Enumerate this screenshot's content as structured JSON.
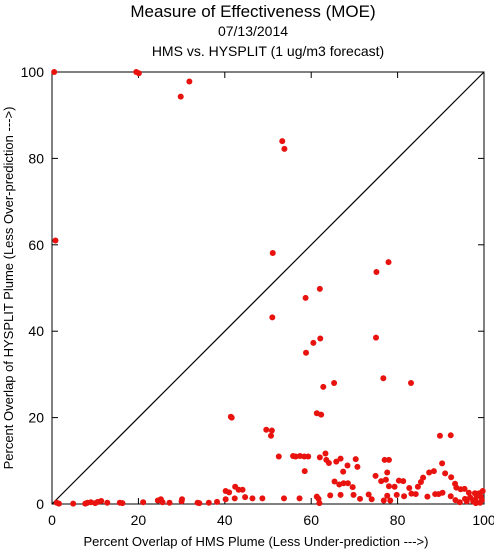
{
  "chart_data": {
    "type": "scatter",
    "title": "Measure of Effectiveness (MOE)",
    "subtitle_date": "07/13/2014",
    "subtitle_compare": "HMS vs. HYSPLIT  (1 ug/m3 forecast)",
    "xlabel": "Percent Overlap of HMS Plume (Less Under-prediction --->)",
    "ylabel": "Percent Overlap of HYSPLIT Plume (Less Over-prediction --->)",
    "xlim": [
      0,
      100
    ],
    "ylim": [
      0,
      100
    ],
    "xticks": [
      "0",
      "20",
      "40",
      "60",
      "80",
      "100"
    ],
    "yticks": [
      "0",
      "20",
      "40",
      "60",
      "80",
      "100"
    ],
    "grid": false,
    "diagonal_reference_line": true,
    "marker_color": "#e8130f",
    "points": [
      [
        0.5,
        100
      ],
      [
        19.5,
        100
      ],
      [
        20.1,
        99.7
      ],
      [
        31.8,
        97.8
      ],
      [
        29.8,
        94.3
      ],
      [
        0.8,
        61
      ],
      [
        53.3,
        84
      ],
      [
        53.8,
        82.2
      ],
      [
        51.1,
        58.1
      ],
      [
        51,
        43.2
      ],
      [
        62,
        49.8
      ],
      [
        58.7,
        47.7
      ],
      [
        60.5,
        37.3
      ],
      [
        62.1,
        38.3
      ],
      [
        58.8,
        35
      ],
      [
        62.8,
        27.1
      ],
      [
        65.3,
        28
      ],
      [
        75.1,
        53.7
      ],
      [
        77.9,
        56
      ],
      [
        75,
        38.5
      ],
      [
        76.7,
        29.1
      ],
      [
        83.1,
        28
      ],
      [
        61.3,
        21
      ],
      [
        62.3,
        20.7
      ],
      [
        41.6,
        20
      ],
      [
        41.4,
        20.2
      ],
      [
        49.6,
        17.2
      ],
      [
        50.9,
        17
      ],
      [
        50.7,
        15.8
      ],
      [
        52.5,
        11
      ],
      [
        56.4,
        11
      ],
      [
        57.4,
        11.1
      ],
      [
        58.4,
        11
      ],
      [
        59.3,
        11
      ],
      [
        55.8,
        11.1
      ],
      [
        62,
        10.8
      ],
      [
        63.5,
        10.2
      ],
      [
        64.1,
        9.5
      ],
      [
        65.8,
        9.8
      ],
      [
        66.8,
        10.5
      ],
      [
        68.4,
        8.9
      ],
      [
        70.3,
        10.4
      ],
      [
        70.7,
        8.6
      ],
      [
        67.4,
        7.5
      ],
      [
        58.5,
        7.6
      ],
      [
        63.3,
        11.7
      ],
      [
        65.4,
        5.2
      ],
      [
        66.5,
        4.5
      ],
      [
        67.5,
        4.8
      ],
      [
        68.5,
        4.8
      ],
      [
        69.6,
        3.9
      ],
      [
        74.9,
        6.5
      ],
      [
        76.2,
        5.3
      ],
      [
        77.3,
        5.6
      ],
      [
        78,
        4.1
      ],
      [
        77,
        10.2
      ],
      [
        78,
        10.2
      ],
      [
        77.6,
        7.3
      ],
      [
        79.3,
        4
      ],
      [
        80.3,
        5.4
      ],
      [
        81.3,
        5.3
      ],
      [
        82.7,
        3.7
      ],
      [
        85.9,
        6.1
      ],
      [
        87.3,
        7.3
      ],
      [
        88.4,
        7.6
      ],
      [
        89.8,
        15.8
      ],
      [
        90.3,
        9.4
      ],
      [
        91,
        7.1
      ],
      [
        92.3,
        15.9
      ],
      [
        92.4,
        6.2
      ],
      [
        93.3,
        4.7
      ],
      [
        93.6,
        3.8
      ],
      [
        94.6,
        3.4
      ],
      [
        95.5,
        3.5
      ],
      [
        96.5,
        2.6
      ],
      [
        97.9,
        2.5
      ],
      [
        99.7,
        3
      ],
      [
        85.4,
        5.1
      ],
      [
        84.7,
        4
      ],
      [
        83.2,
        2.4
      ],
      [
        84.2,
        2.3
      ],
      [
        81.5,
        1.8
      ],
      [
        79.8,
        2.1
      ],
      [
        77.6,
        1.9
      ],
      [
        76.8,
        0.8
      ],
      [
        78.3,
        0.8
      ],
      [
        74,
        1.1
      ],
      [
        73.3,
        2.2
      ],
      [
        71.3,
        1.2
      ],
      [
        69.8,
        2.1
      ],
      [
        66.8,
        2.1
      ],
      [
        64.4,
        2
      ],
      [
        61.3,
        1.7
      ],
      [
        57.3,
        1.3
      ],
      [
        53.7,
        1.3
      ],
      [
        48.7,
        1.3
      ],
      [
        46.4,
        1.3
      ],
      [
        44.7,
        1.6
      ],
      [
        42.3,
        1.3
      ],
      [
        40.2,
        1.1
      ],
      [
        40.2,
        3
      ],
      [
        43.2,
        3.3
      ],
      [
        44.1,
        3.3
      ],
      [
        42.4,
        4
      ],
      [
        41,
        2.7
      ],
      [
        36.3,
        0.3
      ],
      [
        38.2,
        0.5
      ],
      [
        33.7,
        0.3
      ],
      [
        34.1,
        0.2
      ],
      [
        30.1,
        1.1
      ],
      [
        30,
        0.6
      ],
      [
        27.2,
        0.3
      ],
      [
        25.6,
        0.4
      ],
      [
        25.2,
        1.1
      ],
      [
        24.5,
        0.8
      ],
      [
        21.1,
        0.4
      ],
      [
        16.3,
        0.2
      ],
      [
        15.7,
        0.3
      ],
      [
        12.8,
        0.3
      ],
      [
        11.4,
        0.7
      ],
      [
        10.6,
        0.5
      ],
      [
        10,
        0.2
      ],
      [
        9,
        0.4
      ],
      [
        8.2,
        0.3
      ],
      [
        7.7,
        0.1
      ],
      [
        4.9,
        0.1
      ],
      [
        1.6,
        0.1
      ],
      [
        1.1,
        0.3
      ],
      [
        61.9,
        0.2
      ],
      [
        61.7,
        1.2
      ],
      [
        86.9,
        1.7
      ],
      [
        88.7,
        2.3
      ],
      [
        89.5,
        2.3
      ],
      [
        90.4,
        2.6
      ],
      [
        92.3,
        1.8
      ],
      [
        93.4,
        0.9
      ],
      [
        94.4,
        0.4
      ],
      [
        95.6,
        1.2
      ],
      [
        96,
        0.6
      ],
      [
        96.8,
        1.5
      ],
      [
        97.5,
        0.6
      ],
      [
        98,
        1
      ],
      [
        98.3,
        1.8
      ],
      [
        98.9,
        2.5
      ],
      [
        99.3,
        1.7
      ],
      [
        99.5,
        0.9
      ],
      [
        99.1,
        0.3
      ],
      [
        98.1,
        0.2
      ]
    ]
  }
}
